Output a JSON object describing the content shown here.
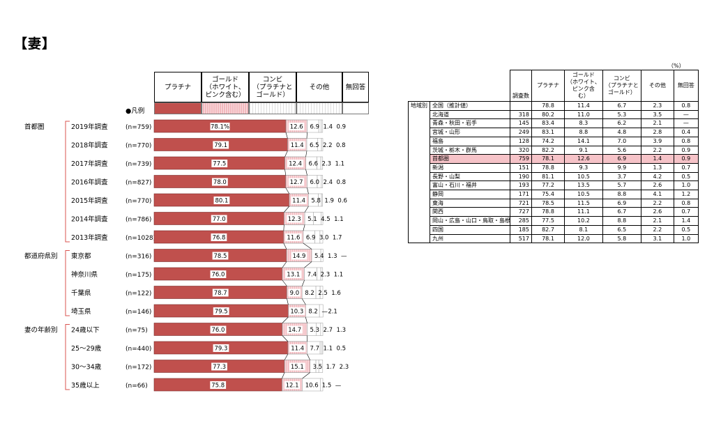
{
  "title": "【妻】",
  "legend": {
    "marker": "●凡例",
    "headers": [
      "プラチナ",
      "ゴールド\n（ホワイト、\nピンク含む）",
      "コンビ\n（プラチナと\nゴールド）",
      "その他",
      "無回答"
    ]
  },
  "groups": [
    "首都圏",
    "都道府県別",
    "妻の年齢別"
  ],
  "colors": {
    "platinum": "#c0504d",
    "gold": "#f2b8bd",
    "combi": "#ffffff",
    "other": "#ffffff",
    "noanswer": "#ffffff"
  },
  "chart_data": {
    "type": "bar",
    "stacked": true,
    "orientation": "horizontal",
    "series_names": [
      "プラチナ",
      "ゴールド（ホワイト、ピンク含む）",
      "コンビ（プラチナとゴールド）",
      "その他",
      "無回答"
    ],
    "rows": [
      {
        "label": "2019年調査",
        "n": "(n=759)",
        "group": 0,
        "values": [
          78.1,
          12.6,
          6.9,
          1.4,
          0.9
        ],
        "texts": [
          "78.1%",
          "12.6",
          "6.9",
          "1.4",
          "0.9"
        ]
      },
      {
        "label": "2018年調査",
        "n": "(n=770)",
        "group": 0,
        "values": [
          79.1,
          11.4,
          6.5,
          2.2,
          0.8
        ],
        "texts": [
          "79.1",
          "11.4",
          "6.5",
          "2.2",
          "0.8"
        ]
      },
      {
        "label": "2017年調査",
        "n": "(n=739)",
        "group": 0,
        "values": [
          77.5,
          12.4,
          6.6,
          2.3,
          1.1
        ],
        "texts": [
          "77.5",
          "12.4",
          "6.6",
          "2.3",
          "1.1"
        ]
      },
      {
        "label": "2016年調査",
        "n": "(n=827)",
        "group": 0,
        "values": [
          78.0,
          12.7,
          6.0,
          2.4,
          0.8
        ],
        "texts": [
          "78.0",
          "12.7",
          "6.0",
          "2.4",
          "0.8"
        ]
      },
      {
        "label": "2015年調査",
        "n": "(n=770)",
        "group": 0,
        "values": [
          80.1,
          11.4,
          5.8,
          1.9,
          0.6
        ],
        "texts": [
          "80.1",
          "11.4",
          "5.8",
          "1.9",
          "0.6"
        ]
      },
      {
        "label": "2014年調査",
        "n": "(n=786)",
        "group": 0,
        "values": [
          77.0,
          12.3,
          5.1,
          4.5,
          1.1
        ],
        "texts": [
          "77.0",
          "12.3",
          "5.1",
          "4.5",
          "1.1"
        ]
      },
      {
        "label": "2013年調査",
        "n": "(n=1028)",
        "group": 0,
        "values": [
          76.8,
          11.6,
          6.9,
          3.0,
          1.7
        ],
        "texts": [
          "76.8",
          "11.6",
          "6.9",
          "3.0",
          "1.7"
        ]
      },
      {
        "label": "東京都",
        "n": "(n=316)",
        "group": 1,
        "values": [
          78.5,
          14.9,
          5.4,
          1.3,
          0
        ],
        "texts": [
          "78.5",
          "14.9",
          "5.4",
          "1.3",
          "—"
        ]
      },
      {
        "label": "神奈川県",
        "n": "(n=175)",
        "group": 1,
        "values": [
          76.0,
          13.1,
          7.4,
          2.3,
          1.1
        ],
        "texts": [
          "76.0",
          "13.1",
          "7.4",
          "2.3",
          "1.1"
        ]
      },
      {
        "label": "千葉県",
        "n": "(n=122)",
        "group": 1,
        "values": [
          78.7,
          9.0,
          8.2,
          2.5,
          1.6
        ],
        "texts": [
          "78.7",
          "9.0",
          "8.2",
          "2.5",
          "1.6"
        ]
      },
      {
        "label": "埼玉県",
        "n": "(n=146)",
        "group": 1,
        "values": [
          79.5,
          10.3,
          8.2,
          0,
          2.1
        ],
        "texts": [
          "79.5",
          "10.3",
          "8.2",
          "—",
          "2.1"
        ]
      },
      {
        "label": "24歳以下",
        "n": "(n=75)",
        "group": 2,
        "values": [
          76.0,
          14.7,
          5.3,
          2.7,
          1.3
        ],
        "texts": [
          "76.0",
          "14.7",
          "5.3",
          "2.7",
          "1.3"
        ]
      },
      {
        "label": "25～29歳",
        "n": "(n=440)",
        "group": 2,
        "values": [
          79.3,
          11.4,
          7.7,
          1.1,
          0.5
        ],
        "texts": [
          "79.3",
          "11.4",
          "7.7",
          "1.1",
          "0.5"
        ]
      },
      {
        "label": "30～34歳",
        "n": "(n=172)",
        "group": 2,
        "values": [
          77.3,
          15.1,
          3.5,
          1.7,
          2.3
        ],
        "texts": [
          "77.3",
          "15.1",
          "3.5",
          "1.7",
          "2.3"
        ]
      },
      {
        "label": "35歳以上",
        "n": "(n=66)",
        "group": 2,
        "values": [
          75.8,
          12.1,
          10.6,
          1.5,
          0
        ],
        "texts": [
          "75.8",
          "12.1",
          "10.6",
          "1.5",
          "—"
        ]
      }
    ]
  },
  "region_table": {
    "unit": "（%）",
    "headers": {
      "count": "調査数",
      "cols": [
        "プラチナ",
        "ゴールド\n（ホワイト、\nピンク含\nむ）",
        "コンビ\n（プラチナと\nゴールド）",
        "その他",
        "無回答"
      ]
    },
    "side_label": "地域別",
    "rows": [
      {
        "name": "全国（推計値）",
        "n": "",
        "v": [
          "78.8",
          "11.4",
          "6.7",
          "2.3",
          "0.8"
        ]
      },
      {
        "name": "北海道",
        "n": "318",
        "v": [
          "80.2",
          "11.0",
          "5.3",
          "3.5",
          "—"
        ]
      },
      {
        "name": "青森・秋田・岩手",
        "n": "145",
        "v": [
          "83.4",
          "8.3",
          "6.2",
          "2.1",
          "—"
        ]
      },
      {
        "name": "宮城・山形",
        "n": "249",
        "v": [
          "83.1",
          "8.8",
          "4.8",
          "2.8",
          "0.4"
        ]
      },
      {
        "name": "福島",
        "n": "128",
        "v": [
          "74.2",
          "14.1",
          "7.0",
          "3.9",
          "0.8"
        ]
      },
      {
        "name": "茨城・栃木・群馬",
        "n": "320",
        "v": [
          "82.2",
          "9.1",
          "5.6",
          "2.2",
          "0.9"
        ]
      },
      {
        "name": "首都圏",
        "n": "759",
        "v": [
          "78.1",
          "12.6",
          "6.9",
          "1.4",
          "0.9"
        ],
        "highlight": true
      },
      {
        "name": "新潟",
        "n": "151",
        "v": [
          "78.8",
          "9.3",
          "9.9",
          "1.3",
          "0.7"
        ]
      },
      {
        "name": "長野・山梨",
        "n": "190",
        "v": [
          "81.1",
          "10.5",
          "3.7",
          "4.2",
          "0.5"
        ]
      },
      {
        "name": "富山・石川・福井",
        "n": "193",
        "v": [
          "77.2",
          "13.5",
          "5.7",
          "2.6",
          "1.0"
        ]
      },
      {
        "name": "静岡",
        "n": "171",
        "v": [
          "75.4",
          "10.5",
          "8.8",
          "4.1",
          "1.2"
        ]
      },
      {
        "name": "東海",
        "n": "721",
        "v": [
          "78.5",
          "11.5",
          "6.9",
          "2.2",
          "0.8"
        ]
      },
      {
        "name": "関西",
        "n": "727",
        "v": [
          "78.8",
          "11.1",
          "6.7",
          "2.6",
          "0.7"
        ]
      },
      {
        "name": "岡山・広島・山口・鳥取・島根",
        "n": "285",
        "v": [
          "77.5",
          "10.2",
          "8.8",
          "2.1",
          "1.4"
        ]
      },
      {
        "name": "四国",
        "n": "185",
        "v": [
          "82.7",
          "8.1",
          "6.5",
          "2.2",
          "0.5"
        ]
      },
      {
        "name": "九州",
        "n": "517",
        "v": [
          "78.1",
          "12.0",
          "5.8",
          "3.1",
          "1.0"
        ]
      }
    ]
  }
}
